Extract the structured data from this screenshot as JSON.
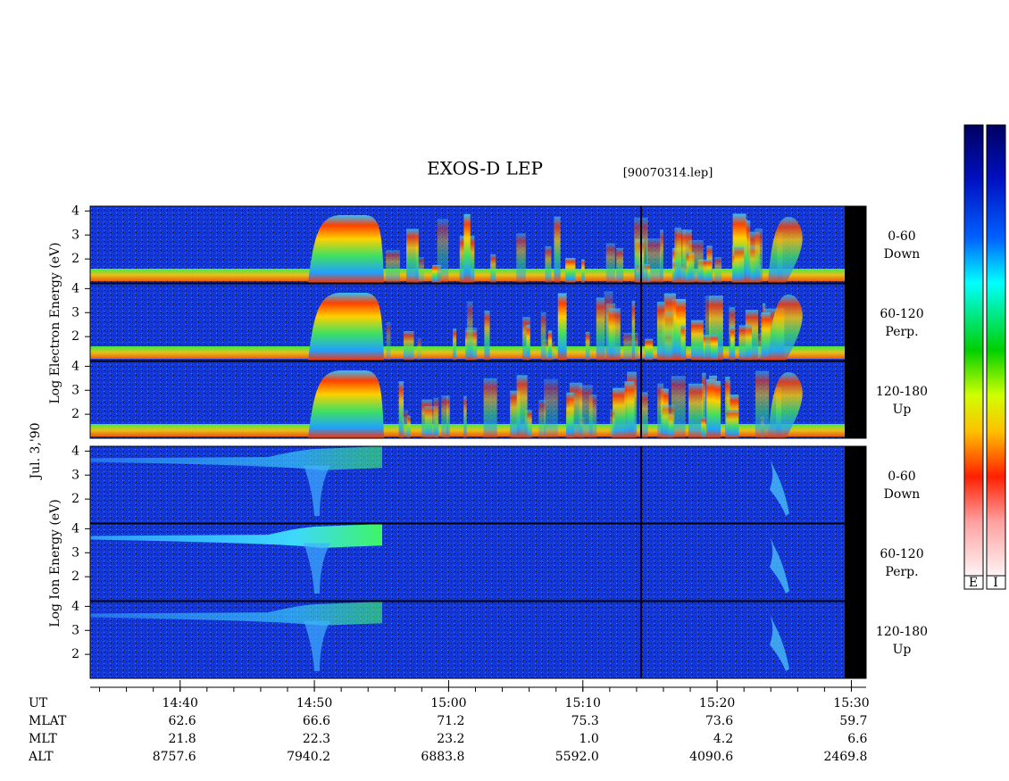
{
  "chart_data": {
    "type": "spectrogram",
    "title": "EXOS-D LEP",
    "file": "[90070314.lep]",
    "date": "Jul. 3,'90",
    "groups": [
      {
        "label": "Log Electron Energy (eV)",
        "panels": [
          {
            "angle": "0-60",
            "direction": "Down"
          },
          {
            "angle": "60-120",
            "direction": "Perp."
          },
          {
            "angle": "120-180",
            "direction": "Up"
          }
        ]
      },
      {
        "label": "Log Ion Energy (eV)",
        "panels": [
          {
            "angle": "0-60",
            "direction": "Down"
          },
          {
            "angle": "60-120",
            "direction": "Perp."
          },
          {
            "angle": "120-180",
            "direction": "Up"
          }
        ]
      }
    ],
    "ylim": [
      1,
      4.2
    ],
    "yticks": [
      2,
      3,
      4
    ],
    "xlim": [
      873.3,
      931.1
    ],
    "xminor_step": 2,
    "xticks": [
      {
        "value": 880,
        "label": "14:40"
      },
      {
        "value": 890,
        "label": "14:50"
      },
      {
        "value": 900,
        "label": "15:00"
      },
      {
        "value": 910,
        "label": "15:10"
      },
      {
        "value": 920,
        "label": "15:20"
      },
      {
        "value": 930,
        "label": "15:30"
      }
    ],
    "ephemeris": [
      {
        "name": "UT"
      },
      {
        "name": "MLAT",
        "values": [
          "62.6",
          "66.6",
          "71.2",
          "75.3",
          "73.6",
          "59.7"
        ]
      },
      {
        "name": "MLT",
        "values": [
          "21.8",
          "22.3",
          "23.2",
          "1.0",
          "4.2",
          "6.6"
        ]
      },
      {
        "name": "ALT",
        "values": [
          "8757.6",
          "7940.2",
          "6883.8",
          "5592.0",
          "4090.6",
          "2469.8"
        ]
      }
    ],
    "colorbars": [
      "E",
      "I"
    ]
  }
}
